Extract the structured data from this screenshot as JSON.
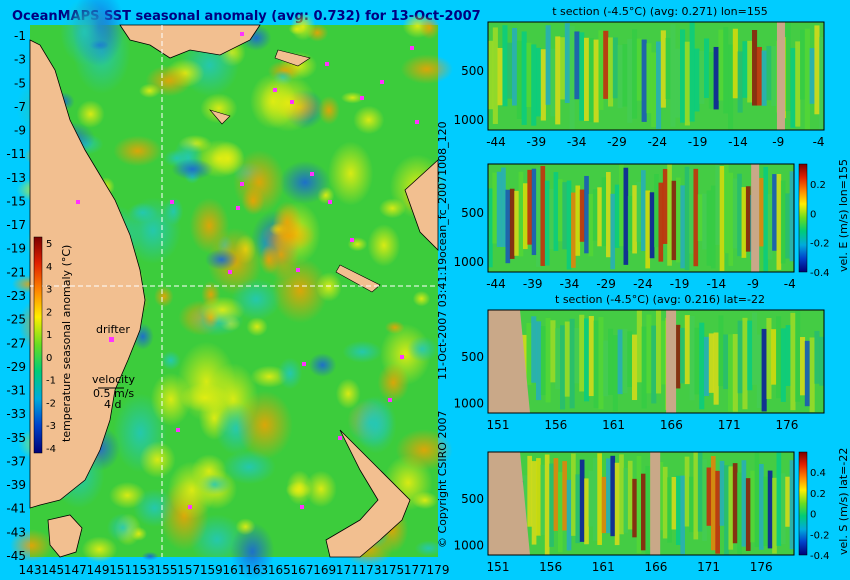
{
  "map": {
    "title": "OceanMAPS SST seasonal anomaly (avg: 0.732) for 13-Oct-2007",
    "colorbar_label": "temperature seasonal anomaly (°C)",
    "colorbar_ticks": [
      "5",
      "4",
      "3",
      "2",
      "1",
      "0",
      "-1",
      "-2",
      "-3",
      "-4"
    ],
    "lat_ticks": [
      "-1",
      "-3",
      "-5",
      "-7",
      "-9",
      "-11",
      "-13",
      "-15",
      "-17",
      "-19",
      "-21",
      "-23",
      "-25",
      "-27",
      "-29",
      "-31",
      "-33",
      "-35",
      "-37",
      "-39",
      "-41",
      "-43",
      "-45"
    ],
    "lon_ticks": [
      "143",
      "145",
      "147",
      "149",
      "151",
      "153",
      "155",
      "157",
      "159",
      "161",
      "163",
      "165",
      "167",
      "169",
      "171",
      "173",
      "175",
      "177",
      "179"
    ],
    "drifter_label": "drifter",
    "velocity_label": "velocity",
    "velocity_value": "0.5 m/s",
    "velocity_days": "4 d"
  },
  "side_text": {
    "run_id": "ocean_fc_20071008_120",
    "date": "11-Oct-2007 03:41:19",
    "copyright": "© Copyright CSIRO 2007"
  },
  "panels": [
    {
      "title": "t section (-4.5°C) (avg: 0.271) lon=155",
      "x_ticks": [
        "-44",
        "-39",
        "-34",
        "-29",
        "-24",
        "-19",
        "-14",
        "-9",
        "-4"
      ],
      "y_ticks": [
        "500",
        "1000"
      ],
      "colorbar": false
    },
    {
      "title": "",
      "x_ticks": [
        "-44",
        "-39",
        "-34",
        "-29",
        "-24",
        "-19",
        "-14",
        "-9",
        "-4"
      ],
      "y_ticks": [
        "500",
        "1000"
      ],
      "colorbar": true,
      "colorbar_label": "vel. E (m/s) lon=155",
      "colorbar_ticks": [
        "0.2",
        "0",
        "-0.2",
        "-0.4"
      ]
    },
    {
      "title": "t section (-4.5°C) (avg: 0.216) lat=-22",
      "x_ticks": [
        "151",
        "156",
        "161",
        "166",
        "171",
        "176"
      ],
      "y_ticks": [
        "500",
        "1000"
      ],
      "colorbar": false
    },
    {
      "title": "",
      "x_ticks": [
        "151",
        "156",
        "161",
        "166",
        "171",
        "176"
      ],
      "y_ticks": [
        "500",
        "1000"
      ],
      "colorbar": true,
      "colorbar_label": "vel. S (m/s) lat=-22",
      "colorbar_ticks": [
        "0.4",
        "0.2",
        "0",
        "-0.2",
        "-0.4"
      ]
    }
  ],
  "chart_data": [
    {
      "type": "heatmap",
      "title": "OceanMAPS SST seasonal anomaly (avg: 0.732) for 13-Oct-2007",
      "x": [
        143,
        145,
        147,
        149,
        151,
        153,
        155,
        157,
        159,
        161,
        163,
        165,
        167,
        169,
        171,
        173,
        175,
        177,
        179
      ],
      "y": [
        -1,
        -3,
        -5,
        -7,
        -9,
        -11,
        -13,
        -15,
        -17,
        -19,
        -21,
        -23,
        -25,
        -27,
        -29,
        -31,
        -33,
        -35,
        -37,
        -39,
        -41,
        -43,
        -45
      ],
      "color_range": [
        -4,
        5
      ],
      "colorbar_label": "temperature seasonal anomaly (°C)"
    },
    {
      "type": "heatmap",
      "title": "t section (-4.5°C) (avg: 0.271) lon=155",
      "x": [
        -44,
        -39,
        -34,
        -29,
        -24,
        -19,
        -14,
        -9,
        -4
      ],
      "y": [
        500,
        1000
      ]
    },
    {
      "type": "heatmap",
      "colorbar_label": "vel. E (m/s) lon=155",
      "x": [
        -44,
        -39,
        -34,
        -29,
        -24,
        -19,
        -14,
        -9,
        -4
      ],
      "y": [
        500,
        1000
      ],
      "color_range": [
        -0.4,
        0.4
      ]
    },
    {
      "type": "heatmap",
      "title": "t section (-4.5°C) (avg: 0.216) lat=-22",
      "x": [
        151,
        156,
        161,
        166,
        171,
        176
      ],
      "y": [
        500,
        1000
      ]
    },
    {
      "type": "heatmap",
      "colorbar_label": "vel. S (m/s) lat=-22",
      "x": [
        151,
        156,
        161,
        166,
        171,
        176
      ],
      "y": [
        500,
        1000
      ],
      "color_range": [
        -0.4,
        0.4
      ]
    }
  ]
}
